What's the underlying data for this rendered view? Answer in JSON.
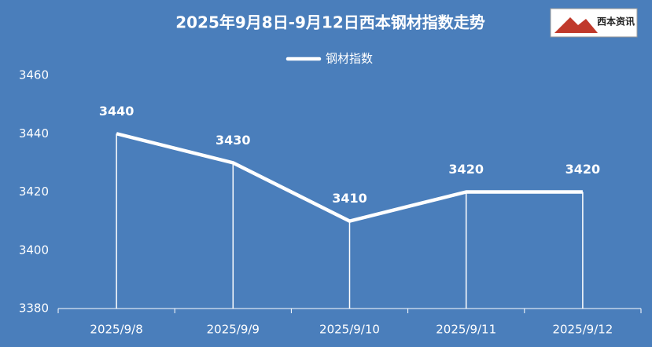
{
  "chart_data": {
    "type": "line",
    "title": "2025年9月8日-9月12日西本钢材指数走势",
    "logo_text": "西本资讯",
    "categories": [
      "2025/9/8",
      "2025/9/9",
      "2025/9/10",
      "2025/9/11",
      "2025/9/12"
    ],
    "series": [
      {
        "name": "钢材指数",
        "color": "#ffffff",
        "values": [
          3440,
          3430,
          3410,
          3420,
          3420
        ]
      }
    ],
    "ylim": [
      3380,
      3460
    ],
    "yticks": [
      3380,
      3400,
      3420,
      3440,
      3460
    ],
    "drop_lines": true,
    "legend": "top",
    "grid": false
  }
}
